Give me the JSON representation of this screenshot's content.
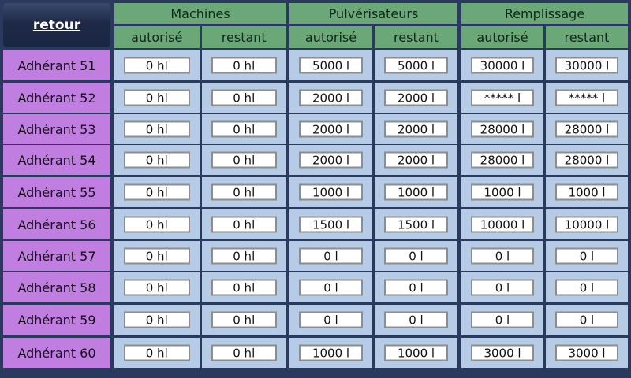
{
  "back_button": {
    "label": "retour"
  },
  "groups": [
    {
      "title": "Machines",
      "col_labels": [
        "autorisé",
        "restant"
      ]
    },
    {
      "title": "Pulvérisateurs",
      "col_labels": [
        "autorisé",
        "restant"
      ]
    },
    {
      "title": "Remplissage",
      "col_labels": [
        "autorisé",
        "restant"
      ]
    }
  ],
  "rows": [
    {
      "label": "Adhérant 51",
      "values": [
        "0 hl",
        "0 hl",
        "5000 l",
        "5000 l",
        "30000 l",
        "30000 l"
      ]
    },
    {
      "label": "Adhérant 52",
      "values": [
        "0 hl",
        "0 hl",
        "2000 l",
        "2000 l",
        "***** l",
        "***** l"
      ]
    },
    {
      "label": "Adhérant 53",
      "values": [
        "0 hl",
        "0 hl",
        "2000 l",
        "2000 l",
        "28000 l",
        "28000 l"
      ]
    },
    {
      "label": "Adhérant 54",
      "values": [
        "0 hl",
        "0 hl",
        "2000 l",
        "2000 l",
        "28000 l",
        "28000 l"
      ]
    },
    {
      "label": "Adhérant 55",
      "values": [
        "0 hl",
        "0 hl",
        "1000 l",
        "1000 l",
        "1000 l",
        "1000 l"
      ]
    },
    {
      "label": "Adhérant 56",
      "values": [
        "0 hl",
        "0 hl",
        "1500 l",
        "1500 l",
        "10000 l",
        "10000 l"
      ]
    },
    {
      "label": "Adhérant 57",
      "values": [
        "0 hl",
        "0 hl",
        "0 l",
        "0 l",
        "0 l",
        "0 l"
      ]
    },
    {
      "label": "Adhérant 58",
      "values": [
        "0 hl",
        "0 hl",
        "0 l",
        "0 l",
        "0 l",
        "0 l"
      ]
    },
    {
      "label": "Adhérant 59",
      "values": [
        "0 hl",
        "0 hl",
        "0 l",
        "0 l",
        "0 l",
        "0 l"
      ]
    },
    {
      "label": "Adhérant 60",
      "values": [
        "0 hl",
        "0 hl",
        "1000 l",
        "1000 l",
        "3000 l",
        "3000 l"
      ]
    }
  ]
}
